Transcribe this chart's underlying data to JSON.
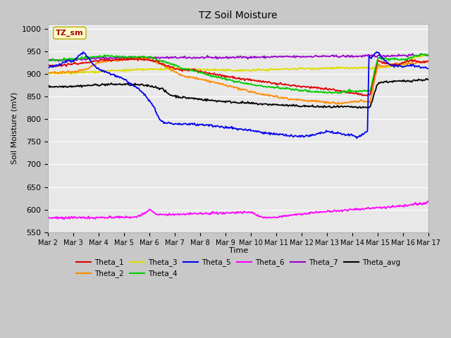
{
  "title": "TZ Soil Moisture",
  "ylabel": "Soil Moisture (mV)",
  "xlabel": "Time",
  "ylim": [
    550,
    1010
  ],
  "yticks": [
    550,
    600,
    650,
    700,
    750,
    800,
    850,
    900,
    950,
    1000
  ],
  "xtick_labels": [
    "Mar 2",
    "Mar 3",
    "Mar 4",
    "Mar 5",
    "Mar 6",
    "Mar 7",
    "Mar 8",
    "Mar 9",
    "Mar 10",
    "Mar 11",
    "Mar 12",
    "Mar 13",
    "Mar 14",
    "Mar 15",
    "Mar 16",
    "Mar 17"
  ],
  "label_box": "TZ_sm",
  "fig_bg": "#c8c8c8",
  "plot_bg": "#e8e8e8",
  "grid_color": "#ffffff",
  "legend_items": [
    [
      "Theta_1",
      "#dd0000"
    ],
    [
      "Theta_2",
      "#ff8800"
    ],
    [
      "Theta_3",
      "#dddd00"
    ],
    [
      "Theta_4",
      "#00cc00"
    ],
    [
      "Theta_5",
      "#0000ee"
    ],
    [
      "Theta_6",
      "#ff00ff"
    ],
    [
      "Theta_7",
      "#9900cc"
    ],
    [
      "Theta_avg",
      "#000000"
    ]
  ],
  "series_colors": {
    "Theta_1": "#dd0000",
    "Theta_2": "#ff8800",
    "Theta_3": "#dddd00",
    "Theta_4": "#00cc00",
    "Theta_5": "#0000ee",
    "Theta_6": "#ff00ff",
    "Theta_7": "#9900cc",
    "Theta_avg": "#000000"
  }
}
